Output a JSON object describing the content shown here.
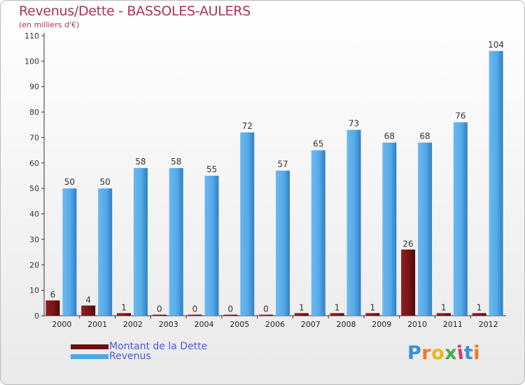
{
  "chart_data": {
    "type": "bar",
    "title": "Revenus/Dette - BASSOLES-AULERS",
    "subtitle": "(en milliers d'€)",
    "categories": [
      "2000",
      "2001",
      "2002",
      "2003",
      "2004",
      "2005",
      "2006",
      "2007",
      "2008",
      "2009",
      "2010",
      "2011",
      "2012"
    ],
    "series": [
      {
        "name": "Montant de la Dette",
        "color": "#7a1414",
        "values": [
          6,
          4,
          1,
          0,
          0,
          0,
          0,
          1,
          1,
          1,
          26,
          1,
          1
        ]
      },
      {
        "name": "Revenus",
        "color": "#4fa8e6",
        "values": [
          50,
          50,
          58,
          58,
          55,
          72,
          57,
          65,
          73,
          68,
          68,
          76,
          104
        ]
      }
    ],
    "ylim": [
      0,
      110
    ],
    "yticks": [
      0,
      10,
      20,
      30,
      40,
      50,
      60,
      70,
      80,
      90,
      100,
      110
    ],
    "xlabel": "",
    "ylabel": "",
    "grid": false,
    "legend_position": "bottom-left"
  },
  "logo": {
    "text": "Proxiti",
    "letter_colors": [
      "#3d8fd6",
      "#f07a1a",
      "#e8b81a",
      "#4aa84a",
      "#d63a6a",
      "#3d8fd6",
      "#f07a1a"
    ]
  }
}
